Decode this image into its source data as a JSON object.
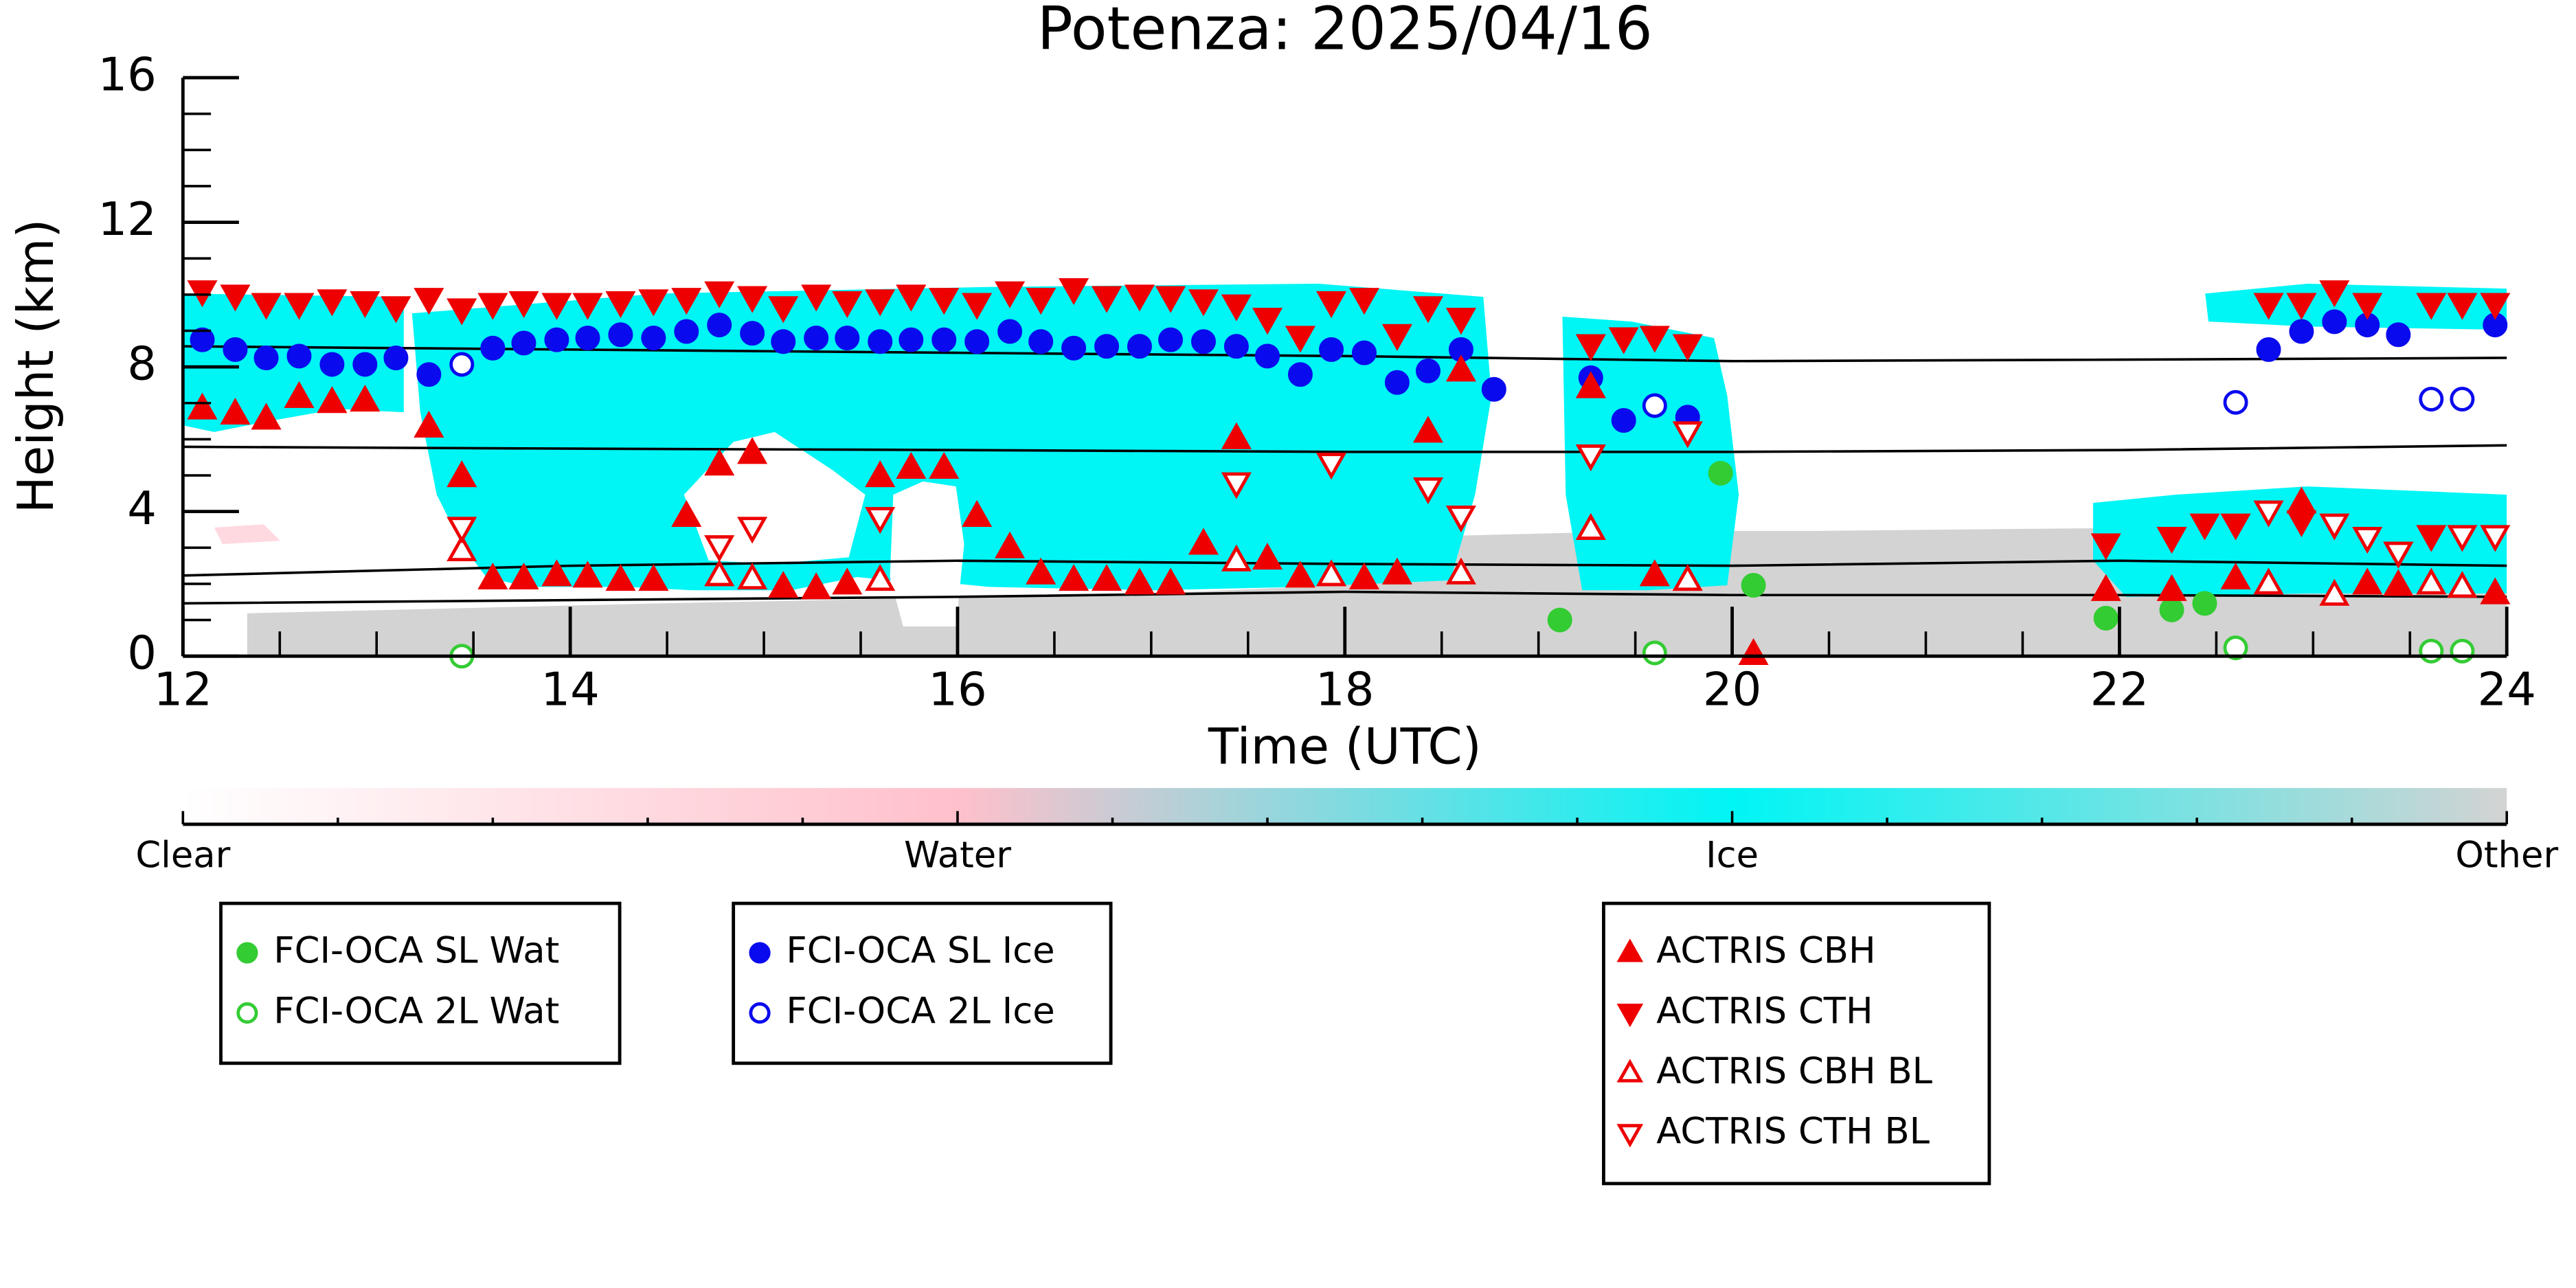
{
  "chart_data": {
    "type": "scatter",
    "title": "Potenza: 2025/04/16",
    "x_label": "Time (UTC)",
    "y_label": "Height (km)",
    "xlim": [
      12,
      24
    ],
    "ylim": [
      0,
      16
    ],
    "xticks": [
      12,
      14,
      16,
      18,
      20,
      22,
      24
    ],
    "xminorticks": [
      12.5,
      13,
      13.5,
      14.5,
      15,
      15.5,
      16.5,
      17,
      17.5,
      18.5,
      19,
      19.5,
      20.5,
      21,
      21.5,
      22.5,
      23,
      23.5
    ],
    "yticks": [
      0,
      4,
      8,
      12,
      16
    ],
    "yminorticks": [
      1,
      2,
      3,
      5,
      6,
      7,
      9,
      10,
      11,
      13,
      14,
      15
    ],
    "series": [
      {
        "name": "FCI-OCA SL Wat",
        "color": "#33cc33",
        "marker": "circle",
        "filled": true,
        "x": [
          19.11,
          19.94,
          20.11,
          21.93,
          22.27,
          22.44
        ],
        "y": [
          1.0,
          5.06,
          1.96,
          1.05,
          1.28,
          1.46
        ]
      },
      {
        "name": "FCI-OCA 2L Wat",
        "color": "#33cc33",
        "marker": "circle",
        "filled": false,
        "x": [
          13.44,
          19.6,
          22.6,
          23.61,
          23.77
        ],
        "y": [
          0.0,
          0.09,
          0.23,
          0.14,
          0.14
        ]
      },
      {
        "name": "FCI-OCA SL Ice",
        "color": "#0a0aee",
        "marker": "circle",
        "filled": true,
        "x": [
          12.1,
          12.27,
          12.43,
          12.6,
          12.77,
          12.94,
          13.1,
          13.27,
          13.6,
          13.76,
          13.93,
          14.09,
          14.26,
          14.43,
          14.6,
          14.77,
          14.94,
          15.1,
          15.27,
          15.43,
          15.6,
          15.76,
          15.93,
          16.1,
          16.27,
          16.43,
          16.6,
          16.77,
          16.94,
          17.1,
          17.27,
          17.44,
          17.6,
          17.77,
          17.93,
          18.1,
          18.27,
          18.43,
          18.6,
          18.77,
          19.27,
          19.44,
          19.77,
          22.77,
          22.94,
          23.11,
          23.28,
          23.44,
          23.94
        ],
        "y": [
          8.75,
          8.48,
          8.25,
          8.3,
          8.07,
          8.07,
          8.25,
          7.79,
          8.52,
          8.66,
          8.75,
          8.8,
          8.89,
          8.8,
          8.98,
          9.16,
          8.93,
          8.7,
          8.8,
          8.8,
          8.7,
          8.75,
          8.75,
          8.7,
          8.98,
          8.7,
          8.52,
          8.57,
          8.57,
          8.75,
          8.7,
          8.57,
          8.3,
          7.79,
          8.48,
          8.39,
          7.57,
          7.89,
          8.48,
          7.38,
          7.7,
          6.52,
          6.61,
          8.48,
          8.98,
          9.25,
          9.16,
          8.89,
          9.16
        ]
      },
      {
        "name": "FCI-OCA 2L Ice",
        "color": "#0a0aee",
        "marker": "circle",
        "filled": false,
        "x": [
          13.44,
          19.6,
          22.6,
          23.61,
          23.77
        ],
        "y": [
          8.07,
          6.93,
          7.02,
          7.11,
          7.11
        ]
      },
      {
        "name": "ACTRIS CBH",
        "color": "#ee0000",
        "marker": "triangle-up",
        "filled": true,
        "x": [
          12.1,
          12.27,
          12.43,
          12.6,
          12.77,
          12.94,
          13.27,
          13.44,
          13.6,
          13.76,
          13.93,
          14.09,
          14.26,
          14.43,
          14.6,
          14.77,
          14.94,
          15.1,
          15.27,
          15.43,
          15.6,
          15.76,
          15.93,
          16.1,
          16.27,
          16.43,
          16.6,
          16.77,
          16.94,
          17.1,
          17.27,
          17.44,
          17.6,
          17.77,
          18.1,
          18.27,
          18.43,
          18.6,
          19.27,
          19.6,
          20.11,
          21.93,
          22.27,
          22.6,
          22.94,
          23.28,
          23.44,
          23.94
        ],
        "y": [
          6.84,
          6.7,
          6.56,
          7.16,
          7.02,
          7.06,
          6.34,
          4.97,
          2.14,
          2.14,
          2.23,
          2.19,
          2.1,
          2.1,
          3.87,
          5.29,
          5.61,
          1.91,
          1.87,
          2.0,
          4.97,
          5.2,
          5.2,
          3.87,
          3.0,
          2.28,
          2.1,
          2.1,
          2.0,
          2.0,
          3.1,
          6.02,
          2.69,
          2.19,
          2.14,
          2.28,
          6.2,
          7.89,
          7.43,
          2.23,
          0.05,
          1.82,
          1.82,
          2.14,
          4.24,
          2.0,
          1.96,
          1.73
        ]
      },
      {
        "name": "ACTRIS CTH",
        "color": "#ee0000",
        "marker": "triangle-down",
        "filled": true,
        "x": [
          12.1,
          12.27,
          12.43,
          12.6,
          12.77,
          12.94,
          13.1,
          13.27,
          13.44,
          13.6,
          13.76,
          13.93,
          14.09,
          14.26,
          14.43,
          14.6,
          14.77,
          14.94,
          15.1,
          15.27,
          15.43,
          15.6,
          15.76,
          15.93,
          16.1,
          16.27,
          16.43,
          16.6,
          16.77,
          16.94,
          17.1,
          17.27,
          17.44,
          17.6,
          17.77,
          17.93,
          18.1,
          18.27,
          18.43,
          18.6,
          19.27,
          19.44,
          19.6,
          19.77,
          21.93,
          22.27,
          22.44,
          22.6,
          22.77,
          22.94,
          22.94,
          23.11,
          23.28,
          23.44,
          23.61,
          23.61,
          23.77,
          23.94
        ],
        "y": [
          10.1,
          9.98,
          9.75,
          9.75,
          9.85,
          9.8,
          9.66,
          9.89,
          9.6,
          9.75,
          9.8,
          9.75,
          9.75,
          9.8,
          9.85,
          9.89,
          10.07,
          9.94,
          9.66,
          9.98,
          9.8,
          9.85,
          9.98,
          9.89,
          9.75,
          10.07,
          9.89,
          10.16,
          9.94,
          9.98,
          9.94,
          9.85,
          9.71,
          9.34,
          8.84,
          9.8,
          9.89,
          8.89,
          9.66,
          9.34,
          8.61,
          8.8,
          8.84,
          8.61,
          3.1,
          3.28,
          3.65,
          3.65,
          9.75,
          9.75,
          3.74,
          10.1,
          9.75,
          2.87,
          9.75,
          3.33,
          9.75,
          9.75
        ]
      },
      {
        "name": "ACTRIS CBH BL",
        "color": "#ee0000",
        "marker": "triangle-up",
        "filled": false,
        "x": [
          13.44,
          14.77,
          14.94,
          15.6,
          17.44,
          17.93,
          18.6,
          19.27,
          19.77,
          22.77,
          23.11,
          23.61,
          23.77
        ],
        "y": [
          2.92,
          2.23,
          2.14,
          2.1,
          2.64,
          2.23,
          2.28,
          3.51,
          2.1,
          2.0,
          1.69,
          2.0,
          1.91
        ]
      },
      {
        "name": "ACTRIS CTH BL",
        "color": "#ee0000",
        "marker": "triangle-down",
        "filled": false,
        "x": [
          13.44,
          14.77,
          14.94,
          15.6,
          17.44,
          17.93,
          18.43,
          18.6,
          19.27,
          19.77,
          22.77,
          23.11,
          23.28,
          23.44,
          23.77,
          23.94
        ],
        "y": [
          3.56,
          3.05,
          3.56,
          3.83,
          4.79,
          5.33,
          4.65,
          3.87,
          5.56,
          6.2,
          4.01,
          3.65,
          3.28,
          2.87,
          3.33,
          3.33
        ]
      }
    ],
    "reference_lines": [
      {
        "color": "#000000",
        "x": [
          12,
          14,
          16,
          18,
          20,
          22,
          24
        ],
        "y": [
          8.57,
          8.48,
          8.39,
          8.3,
          8.16,
          8.2,
          8.25
        ]
      },
      {
        "color": "#000000",
        "x": [
          12,
          14,
          16,
          18,
          20,
          22,
          24
        ],
        "y": [
          5.79,
          5.74,
          5.7,
          5.65,
          5.65,
          5.7,
          5.83
        ]
      },
      {
        "color": "#000000",
        "x": [
          12,
          14,
          16,
          18,
          20,
          22,
          24
        ],
        "y": [
          2.23,
          2.5,
          2.64,
          2.55,
          2.5,
          2.64,
          2.5
        ]
      },
      {
        "color": "#000000",
        "x": [
          12,
          14,
          16,
          18,
          20,
          22,
          24
        ],
        "y": [
          1.46,
          1.55,
          1.64,
          1.78,
          1.69,
          1.69,
          1.64
        ]
      }
    ],
    "colorbar": {
      "labels": [
        "Clear",
        "Water",
        "Ice",
        "Other"
      ],
      "colors": [
        "#ffffff",
        "#ffc0cb",
        "#00f5f5",
        "#d3d3d3"
      ]
    }
  }
}
